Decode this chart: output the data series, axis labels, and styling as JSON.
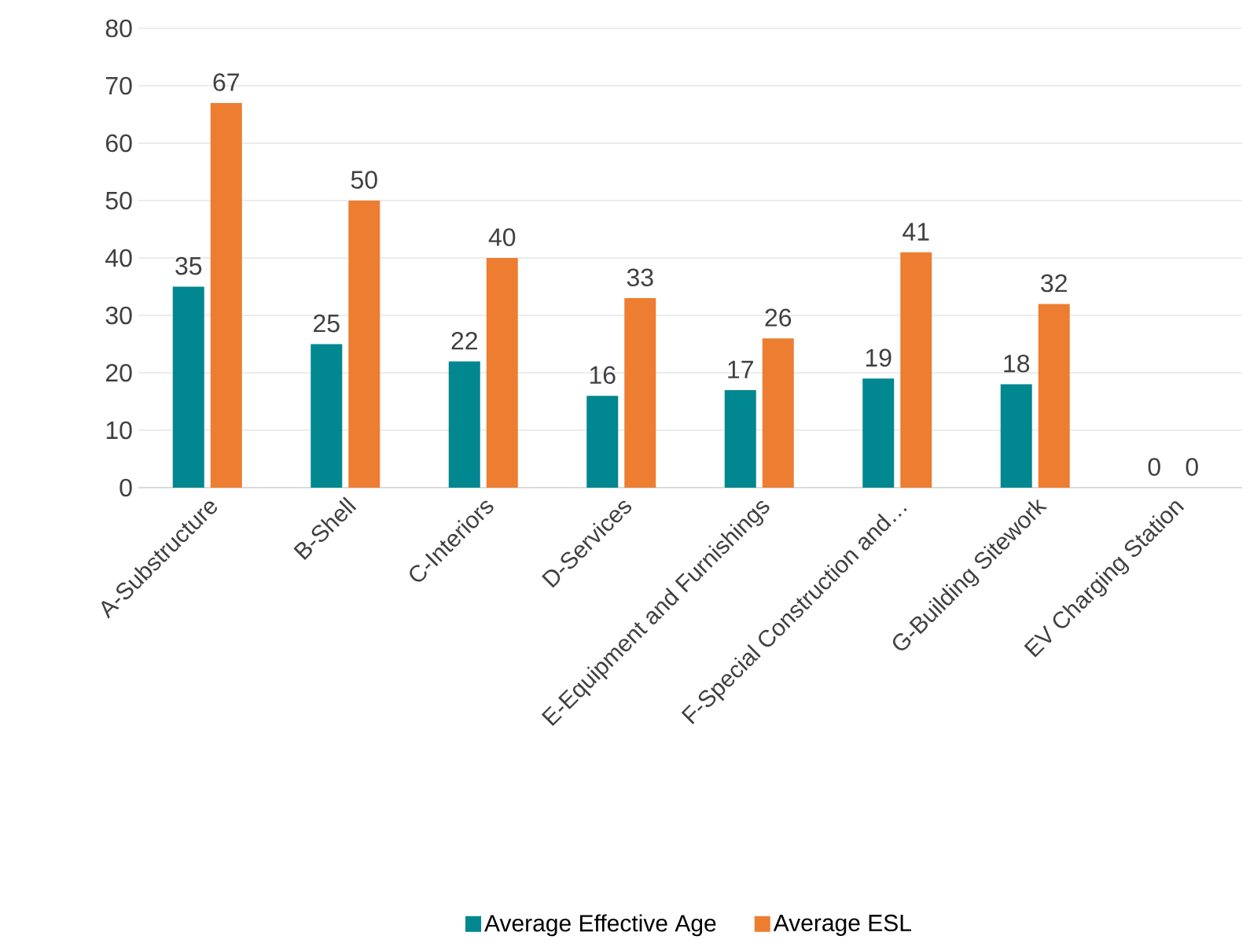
{
  "chart_data": {
    "type": "bar",
    "categories": [
      "A-Substructure",
      "B-Shell",
      "C-Interiors",
      "D-Services",
      "E-Equipment and Furnishings",
      "F-Special Construction and…",
      "G-Building Sitework",
      "EV Charging Station"
    ],
    "series": [
      {
        "name": "Average Effective Age",
        "color": "#00878f",
        "values": [
          35,
          25,
          22,
          16,
          17,
          19,
          18,
          0
        ]
      },
      {
        "name": "Average ESL",
        "color": "#ed7d31",
        "values": [
          67,
          50,
          40,
          33,
          26,
          41,
          32,
          0
        ]
      }
    ],
    "ylim": [
      0,
      80
    ],
    "yticks": [
      0,
      10,
      20,
      30,
      40,
      50,
      60,
      70,
      80
    ],
    "grid": "y",
    "legend": "bottom",
    "data_labels": true
  }
}
